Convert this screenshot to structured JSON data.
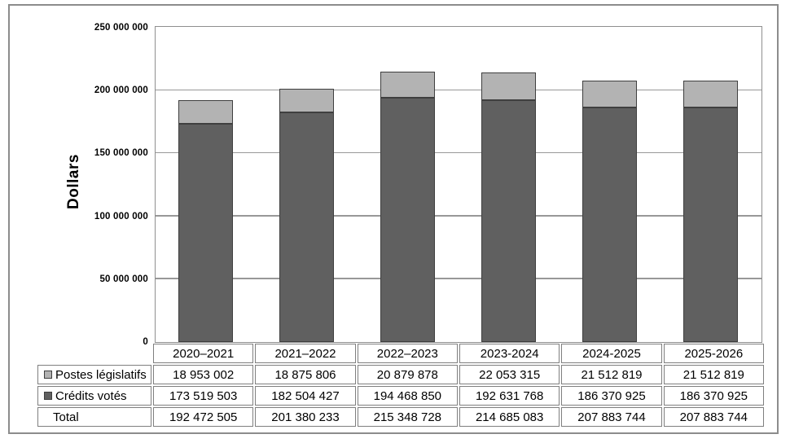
{
  "chart_data": {
    "type": "bar",
    "variant": "stacked-column",
    "title": "",
    "ylabel": "Dollars",
    "xlabel": "",
    "categories": [
      "2020–2021",
      "2021–2022",
      "2022–2023",
      "2023-2024",
      "2024-2025",
      "2025-2026"
    ],
    "series": [
      {
        "name": "Postes législatifs",
        "color": "#b3b3b3",
        "values": [
          18953002,
          18875806,
          20879878,
          22053315,
          21512819,
          21512819
        ]
      },
      {
        "name": "Crédits votés",
        "color": "#606060",
        "values": [
          173519503,
          182504427,
          194468850,
          192631768,
          186370925,
          186370925
        ]
      }
    ],
    "stack_order_bottom_to_top": [
      "Crédits votés",
      "Postes législatifs"
    ],
    "totals": [
      192472505,
      201380233,
      215348728,
      214685083,
      207883744,
      207883744
    ],
    "ylim": [
      0,
      250000000
    ],
    "ytick_step": 50000000,
    "ytick_labels": [
      "0",
      "50 000 000",
      "100 000 000",
      "150 000 000",
      "200 000 000",
      "250 000 000"
    ],
    "grid": true,
    "legend_position": "embedded-in-data-table"
  },
  "table": {
    "header_row": [
      "2020–2021",
      "2021–2022",
      "2022–2023",
      "2023-2024",
      "2024-2025",
      "2025-2026"
    ],
    "rows": [
      {
        "label": "Postes législatifs",
        "swatch_color": "#b3b3b3",
        "values": [
          "18 953 002",
          "18 875 806",
          "20 879 878",
          "22 053 315",
          "21 512 819",
          "21 512 819"
        ]
      },
      {
        "label": "Crédits votés",
        "swatch_color": "#606060",
        "values": [
          "173 519 503",
          "182 504 427",
          "194 468 850",
          "192 631 768",
          "186 370 925",
          "186 370 925"
        ]
      },
      {
        "label": "Total",
        "swatch_color": null,
        "values": [
          "192 472 505",
          "201 380 233",
          "215 348 728",
          "214 685 083",
          "207 883 744",
          "207 883 744"
        ]
      }
    ]
  },
  "colors": {
    "bar_dark": "#606060",
    "bar_light": "#b3b3b3",
    "bar_border": "#3f3f3f",
    "gridline": "#989898",
    "plot_border": "#8f8f8f",
    "table_border": "#7f7f7f",
    "outer_border": "#8c8c8c",
    "text": "#000000",
    "background": "#ffffff"
  }
}
